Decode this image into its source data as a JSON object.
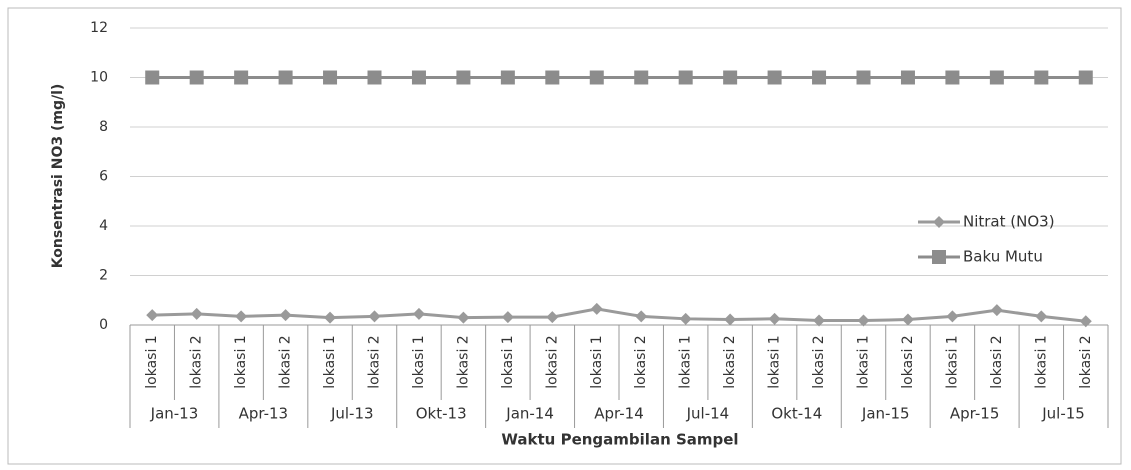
{
  "chart_data": {
    "type": "line",
    "x_label": "Waktu Pengambilan Sampel",
    "y_label": "Konsentrasi NO3 (mg/l)",
    "categories": [
      "lokasi 1",
      "lokasi 2",
      "lokasi 1",
      "lokasi 2",
      "lokasi 1",
      "lokasi 2",
      "lokasi 1",
      "lokasi 2",
      "lokasi 1",
      "lokasi 2",
      "lokasi 1",
      "lokasi 2",
      "lokasi 1",
      "lokasi 2",
      "lokasi 1",
      "lokasi 2",
      "lokasi 1",
      "lokasi 2",
      "lokasi 1",
      "lokasi 2",
      "lokasi 1",
      "lokasi 2"
    ],
    "groups": [
      "Jan-13",
      "Apr-13",
      "Jul-13",
      "Okt-13",
      "Jan-14",
      "Apr-14",
      "Jul-14",
      "Okt-14",
      "Jan-15",
      "Apr-15",
      "Jul-15"
    ],
    "series": [
      {
        "name": "Nitrat (NO3)",
        "color": "#9a9a9a",
        "marker": "diamond",
        "values": [
          0.4,
          0.45,
          0.35,
          0.4,
          0.3,
          0.35,
          0.45,
          0.3,
          0.32,
          0.32,
          0.65,
          0.35,
          0.25,
          0.22,
          0.25,
          0.18,
          0.18,
          0.22,
          0.35,
          0.6,
          0.35,
          0.15
        ]
      },
      {
        "name": "Baku Mutu",
        "color": "#8c8c8c",
        "marker": "square",
        "values": [
          10,
          10,
          10,
          10,
          10,
          10,
          10,
          10,
          10,
          10,
          10,
          10,
          10,
          10,
          10,
          10,
          10,
          10,
          10,
          10,
          10,
          10
        ]
      }
    ],
    "ylim": [
      0,
      12
    ],
    "yticks": [
      0,
      2,
      4,
      6,
      8,
      10,
      12
    ],
    "grid": true,
    "legend": "right"
  }
}
